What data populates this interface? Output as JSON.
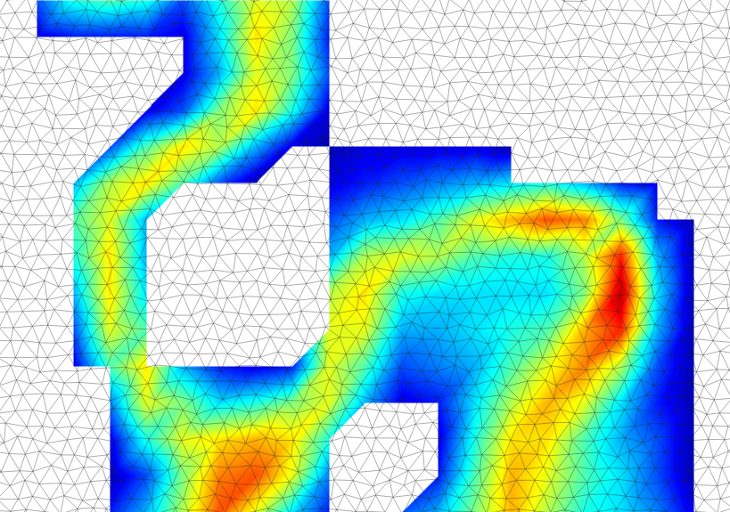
{
  "chart_data": {
    "type": "mesh_field",
    "x": [
      0,
      1,
      2,
      3,
      4,
      5,
      6,
      7,
      8,
      9,
      10,
      11,
      12,
      13,
      14,
      15,
      16,
      17,
      18,
      19,
      20
    ],
    "y": [
      0,
      1,
      2,
      3,
      4,
      5,
      6,
      7,
      8,
      9,
      10,
      11,
      12,
      13,
      14
    ],
    "values": [
      [
        null,
        0.2,
        0.4,
        0.45,
        0.4,
        0.2,
        0.4,
        0.6,
        0.55,
        0.2,
        null,
        null,
        null,
        null,
        null,
        null,
        null,
        null,
        null,
        null,
        null
      ],
      [
        null,
        0.1,
        0.15,
        0.15,
        0.15,
        0.1,
        0.35,
        0.65,
        0.5,
        0.15,
        null,
        null,
        null,
        null,
        null,
        null,
        null,
        null,
        null,
        null,
        null
      ],
      [
        null,
        null,
        null,
        null,
        null,
        0.1,
        0.3,
        0.6,
        0.5,
        0.2,
        null,
        null,
        null,
        null,
        null,
        null,
        null,
        null,
        null,
        null,
        null
      ],
      [
        null,
        null,
        null,
        null,
        0.1,
        0.2,
        0.5,
        0.65,
        0.4,
        0.1,
        null,
        null,
        null,
        null,
        null,
        null,
        null,
        null,
        null,
        null,
        null
      ],
      [
        null,
        null,
        null,
        0.2,
        0.45,
        0.65,
        0.55,
        0.3,
        0.1,
        0.05,
        0.1,
        0.1,
        0.1,
        0.1,
        0.05,
        null,
        null,
        null,
        null,
        null,
        null
      ],
      [
        null,
        null,
        0.3,
        0.55,
        0.65,
        0.45,
        0.2,
        0.05,
        null,
        0.1,
        0.15,
        0.2,
        0.25,
        0.3,
        0.35,
        0.4,
        0.3,
        0.15,
        0.1,
        null,
        null
      ],
      [
        null,
        null,
        0.45,
        0.6,
        0.3,
        null,
        null,
        null,
        null,
        0.2,
        0.3,
        0.35,
        0.45,
        0.6,
        0.7,
        0.8,
        0.75,
        0.5,
        0.15,
        0.05,
        null
      ],
      [
        null,
        null,
        0.4,
        0.65,
        0.3,
        null,
        null,
        null,
        null,
        0.3,
        0.55,
        0.6,
        0.55,
        0.45,
        0.4,
        0.4,
        0.55,
        0.85,
        0.3,
        0.05,
        null
      ],
      [
        null,
        null,
        0.3,
        0.65,
        0.35,
        null,
        null,
        null,
        null,
        0.55,
        0.65,
        0.4,
        0.35,
        0.35,
        0.35,
        0.35,
        0.5,
        0.95,
        0.35,
        0.05,
        null
      ],
      [
        null,
        null,
        0.2,
        0.6,
        0.45,
        null,
        null,
        null,
        null,
        0.6,
        0.6,
        0.3,
        0.3,
        0.35,
        0.4,
        0.45,
        0.7,
        0.85,
        0.3,
        0.05,
        null
      ],
      [
        null,
        null,
        0.1,
        0.45,
        0.65,
        0.3,
        0.15,
        0.1,
        0.15,
        0.6,
        0.45,
        0.2,
        0.25,
        0.3,
        0.45,
        0.6,
        0.75,
        0.55,
        0.2,
        0.05,
        null
      ],
      [
        null,
        null,
        null,
        0.25,
        0.6,
        0.5,
        0.35,
        0.4,
        0.5,
        0.6,
        0.3,
        0.1,
        0.15,
        0.35,
        0.55,
        0.7,
        0.6,
        0.35,
        0.15,
        0.05,
        null
      ],
      [
        null,
        null,
        null,
        0.1,
        0.4,
        0.6,
        0.65,
        0.7,
        0.65,
        0.4,
        null,
        null,
        0.1,
        0.4,
        0.65,
        0.65,
        0.45,
        0.3,
        0.2,
        0.05,
        null
      ],
      [
        null,
        null,
        null,
        0.05,
        0.2,
        0.5,
        0.75,
        0.8,
        0.6,
        0.25,
        null,
        null,
        0.15,
        0.45,
        0.7,
        0.6,
        0.45,
        0.35,
        0.2,
        0.05,
        null
      ],
      [
        null,
        null,
        null,
        0.15,
        0.3,
        0.55,
        0.8,
        0.6,
        0.35,
        0.15,
        0.1,
        0.2,
        0.3,
        0.5,
        0.7,
        0.55,
        0.4,
        0.35,
        0.25,
        0.1,
        null
      ]
    ],
    "color": "jet",
    "color_range": [
      0,
      1
    ],
    "xlim": [
      0,
      20
    ],
    "ylim": [
      0,
      14
    ],
    "tick_labels": false
  }
}
